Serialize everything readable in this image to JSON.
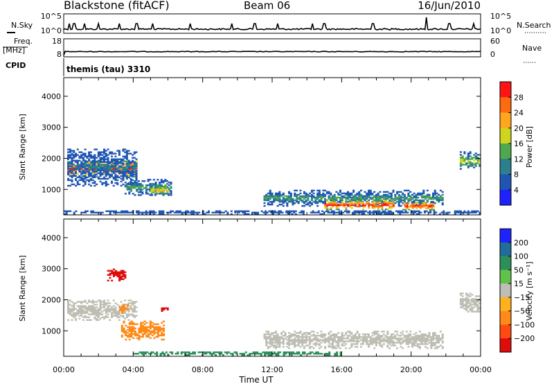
{
  "header": {
    "station": "Blackstone (fitACF)",
    "beam": "Beam 06",
    "date": "16/Jun/2010"
  },
  "panels": {
    "nsky": {
      "label": "N.Sky",
      "right_label": "N.Search",
      "left_ticks": [
        "10^5",
        "10^0"
      ],
      "right_ticks": [
        "10^5",
        "10^0"
      ]
    },
    "freq": {
      "label_line1": "Freq.",
      "label_line2": "[MHz]",
      "right_label": "Nave",
      "left_ticks": [
        "18",
        "8"
      ],
      "right_ticks": [
        "60",
        "0"
      ]
    },
    "cpid": {
      "label": "CPID",
      "program": "themis (tau) 3310"
    }
  },
  "axes": {
    "ylabel": "Slant Range [km]",
    "xlabel": "Time UT",
    "x_ticks": [
      "00:00",
      "04:00",
      "08:00",
      "12:00",
      "16:00",
      "20:00",
      "00:00"
    ],
    "y_ticks": [
      "1000",
      "2000",
      "3000",
      "4000"
    ]
  },
  "colorbars": {
    "power": {
      "label": "Power [dB]",
      "ticks": [
        "4",
        "8",
        "12",
        "16",
        "20",
        "24",
        "28"
      ],
      "colors": [
        "#1e22ff",
        "#1f56b4",
        "#2c7f8f",
        "#4fa84f",
        "#cfd51c",
        "#ffa61e",
        "#ff6a10",
        "#ff1414"
      ]
    },
    "velocity": {
      "label": "Velocity [m s⁻¹]",
      "ticks": [
        "200",
        "100",
        "50",
        "15",
        "−15",
        "−50",
        "−100",
        "−200"
      ],
      "colors": [
        "#1e22ff",
        "#1f6e9a",
        "#2c8f5a",
        "#5fc24a",
        "#bebeb4",
        "#ffb21e",
        "#ff8a18",
        "#ff4a10",
        "#e00c0c"
      ]
    }
  },
  "chart_data": [
    {
      "type": "heatmap",
      "title": "Power",
      "xlabel": "Time UT",
      "ylabel": "Slant Range [km]",
      "x_range_hours": [
        0,
        24
      ],
      "y_range_km": [
        180,
        4600
      ],
      "color_scale": "Power [dB]",
      "regions": [
        {
          "t0": 0.2,
          "t1": 4.2,
          "r_center": 1650,
          "r_halfwidth": 260,
          "dB": 28,
          "note": "dense"
        },
        {
          "t0": 0.2,
          "t1": 4.2,
          "r_center": 1700,
          "r_halfwidth": 600,
          "dB": 8
        },
        {
          "t0": 3.5,
          "t1": 6.2,
          "r_center": 1050,
          "r_halfwidth": 250,
          "dB": 12
        },
        {
          "t0": 5.0,
          "t1": 6.0,
          "r_center": 950,
          "r_halfwidth": 150,
          "dB": 20
        },
        {
          "t0": 11.5,
          "t1": 21.8,
          "r_center": 700,
          "r_halfwidth": 250,
          "dB": 12
        },
        {
          "t0": 15.0,
          "t1": 19.0,
          "r_center": 480,
          "r_halfwidth": 140,
          "dB": 28
        },
        {
          "t0": 19.5,
          "t1": 21.3,
          "r_center": 450,
          "r_halfwidth": 120,
          "dB": 28
        },
        {
          "t0": 22.8,
          "t1": 24.0,
          "r_center": 1900,
          "r_halfwidth": 300,
          "dB": 16
        },
        {
          "t0": 0.0,
          "t1": 24.0,
          "r_center": 250,
          "r_halfwidth": 60,
          "dB": 6
        }
      ]
    },
    {
      "type": "heatmap",
      "title": "Velocity",
      "xlabel": "Time UT",
      "ylabel": "Slant Range [km]",
      "x_range_hours": [
        0,
        24
      ],
      "y_range_km": [
        180,
        4600
      ],
      "color_scale": "Velocity [m s⁻¹]",
      "regions": [
        {
          "t0": 0.2,
          "t1": 4.2,
          "r_center": 1650,
          "r_halfwidth": 320,
          "velocity": 0
        },
        {
          "t0": 3.2,
          "t1": 3.7,
          "r_center": 1700,
          "r_halfwidth": 150,
          "velocity": -50
        },
        {
          "t0": 3.3,
          "t1": 5.8,
          "r_center": 1000,
          "r_halfwidth": 300,
          "velocity": -50
        },
        {
          "t0": 2.5,
          "t1": 3.5,
          "r_center": 2800,
          "r_halfwidth": 200,
          "velocity": -200
        },
        {
          "t0": 5.6,
          "t1": 6.0,
          "r_center": 1700,
          "r_halfwidth": 80,
          "velocity": -200
        },
        {
          "t0": 11.5,
          "t1": 21.8,
          "r_center": 700,
          "r_halfwidth": 280,
          "velocity": 0
        },
        {
          "t0": 4.0,
          "t1": 16.0,
          "r_center": 260,
          "r_halfwidth": 60,
          "velocity": 50
        },
        {
          "t0": 22.8,
          "t1": 24.0,
          "r_center": 1900,
          "r_halfwidth": 300,
          "velocity": 0
        }
      ]
    }
  ]
}
